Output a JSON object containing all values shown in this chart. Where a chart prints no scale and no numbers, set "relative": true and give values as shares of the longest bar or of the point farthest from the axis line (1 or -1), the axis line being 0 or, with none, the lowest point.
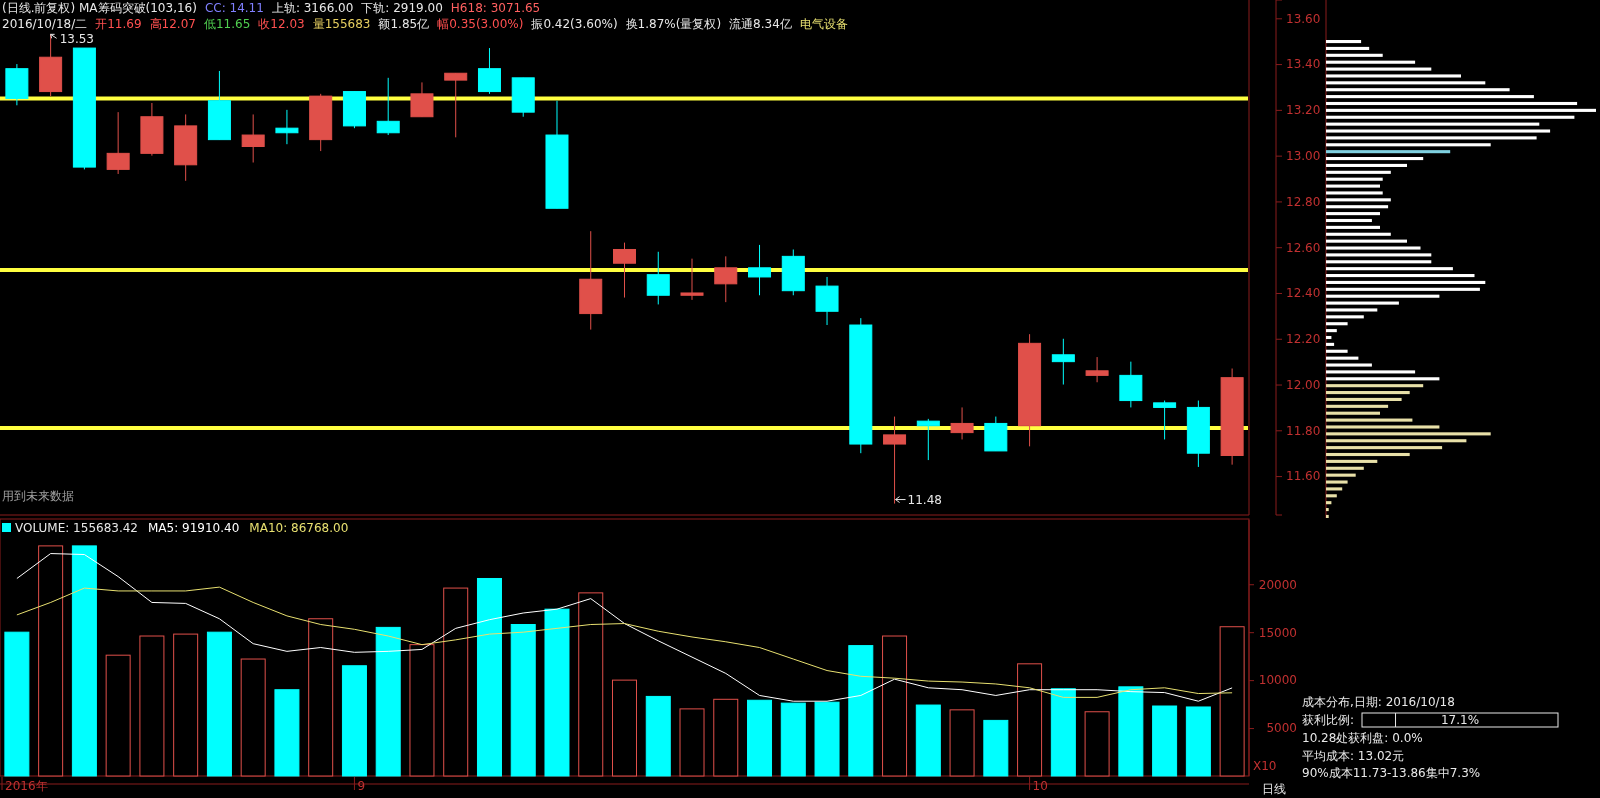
{
  "chart_data": [
    {
      "type": "candlestick",
      "title": "(日线.前复权) MA筹码突破(103,16)",
      "categories": [
        null,
        null,
        null,
        null,
        null,
        null,
        null,
        null,
        null,
        null,
        null,
        null,
        null,
        null,
        null,
        null,
        null,
        null,
        null,
        null,
        null,
        null,
        null,
        null,
        null,
        null,
        null,
        null,
        null,
        null,
        null,
        null,
        null,
        null,
        null,
        null,
        null
      ],
      "ohlc": [
        [
          13.38,
          13.4,
          13.22,
          13.25
        ],
        [
          13.28,
          13.53,
          13.26,
          13.43
        ],
        [
          13.47,
          13.47,
          12.94,
          12.95
        ],
        [
          12.94,
          13.19,
          12.92,
          13.01
        ],
        [
          13.01,
          13.23,
          13.0,
          13.17
        ],
        [
          12.96,
          13.18,
          12.89,
          13.13
        ],
        [
          13.24,
          13.37,
          13.07,
          13.07
        ],
        [
          13.04,
          13.18,
          12.97,
          13.09
        ],
        [
          13.12,
          13.2,
          13.05,
          13.1
        ],
        [
          13.07,
          13.27,
          13.02,
          13.26
        ],
        [
          13.28,
          13.28,
          13.12,
          13.13
        ],
        [
          13.15,
          13.34,
          13.09,
          13.1
        ],
        [
          13.17,
          13.32,
          13.17,
          13.27
        ],
        [
          13.33,
          13.36,
          13.08,
          13.36
        ],
        [
          13.38,
          13.47,
          13.27,
          13.28
        ],
        [
          13.34,
          13.34,
          13.17,
          13.19
        ],
        [
          13.09,
          13.24,
          12.77,
          12.77
        ],
        [
          12.31,
          12.67,
          12.24,
          12.46
        ],
        [
          12.53,
          12.62,
          12.38,
          12.59
        ],
        [
          12.48,
          12.58,
          12.35,
          12.39
        ],
        [
          12.39,
          12.55,
          12.37,
          12.4
        ],
        [
          12.44,
          12.56,
          12.36,
          12.51
        ],
        [
          12.51,
          12.61,
          12.39,
          12.47
        ],
        [
          12.56,
          12.59,
          12.39,
          12.41
        ],
        [
          12.43,
          12.47,
          12.26,
          12.32
        ],
        [
          12.26,
          12.29,
          11.7,
          11.74
        ],
        [
          11.74,
          11.86,
          11.48,
          11.78
        ],
        [
          11.84,
          11.85,
          11.67,
          11.82
        ],
        [
          11.79,
          11.9,
          11.76,
          11.83
        ],
        [
          11.83,
          11.86,
          11.71,
          11.71
        ],
        [
          11.82,
          12.22,
          11.73,
          12.18
        ],
        [
          12.13,
          12.2,
          12.0,
          12.1
        ],
        [
          12.04,
          12.12,
          12.01,
          12.06
        ],
        [
          12.04,
          12.1,
          11.9,
          11.93
        ],
        [
          11.92,
          11.93,
          11.76,
          11.9
        ],
        [
          11.9,
          11.93,
          11.64,
          11.7
        ],
        [
          11.69,
          12.07,
          11.65,
          12.03
        ]
      ],
      "colors": [
        "#00ffff",
        "#e0504a",
        "#00ffff",
        "#e0504a",
        "#e0504a",
        "#e0504a",
        "#00ffff",
        "#e0504a",
        "#00ffff",
        "#e0504a",
        "#00ffff",
        "#00ffff",
        "#e0504a",
        "#e0504a",
        "#00ffff",
        "#00ffff",
        "#00ffff",
        "#e0504a",
        "#e0504a",
        "#00ffff",
        "#e0504a",
        "#e0504a",
        "#00ffff",
        "#00ffff",
        "#00ffff",
        "#00ffff",
        "#e0504a",
        "#00ffff",
        "#e0504a",
        "#00ffff",
        "#e0504a",
        "#00ffff",
        "#e0504a",
        "#00ffff",
        "#00ffff",
        "#00ffff",
        "#e0504a"
      ],
      "ylim": [
        11.43,
        13.68
      ],
      "yticks": [
        {
          "value": 11.6,
          "label": "11.60"
        },
        {
          "value": 11.8,
          "label": "11.80"
        },
        {
          "value": 12.0,
          "label": "12.00"
        },
        {
          "value": 12.2,
          "label": "12.20"
        },
        {
          "value": 12.4,
          "label": "12.40"
        },
        {
          "value": 12.6,
          "label": "12.60"
        },
        {
          "value": 12.8,
          "label": "12.80"
        },
        {
          "value": 13.0,
          "label": "13.00"
        },
        {
          "value": 13.2,
          "label": "13.20"
        },
        {
          "value": 13.4,
          "label": "13.40"
        },
        {
          "value": 13.6,
          "label": "13.60"
        }
      ],
      "tick_labels": "y",
      "ref_lines": [
        {
          "axis": "y",
          "value": 13.25,
          "color": "#ffff40"
        },
        {
          "axis": "y",
          "value": 12.5,
          "color": "#ffff40"
        },
        {
          "axis": "y",
          "value": 11.81,
          "color": "#ffff40"
        }
      ],
      "annotations": [
        "CC: 14.11",
        "上轨: 3166.00",
        "下轨: 2919.00",
        "H618: 3071.65",
        "2016/10/18/二",
        "开11.69",
        "高12.07",
        "低11.65",
        "收12.03",
        "量155683",
        "额1.85亿",
        "幅0.35(3.00%)",
        "振0.42(3.60%)",
        "换1.87%(量复权)",
        "流通8.34亿",
        "电气设备",
        "用到未来数据",
        "13.53",
        "11.48"
      ]
    },
    {
      "type": "bar",
      "categories": [
        "2016年",
        null,
        null,
        null,
        null,
        null,
        null,
        null,
        null,
        null,
        "9",
        null,
        null,
        null,
        null,
        null,
        null,
        null,
        null,
        null,
        null,
        null,
        null,
        null,
        null,
        null,
        null,
        null,
        null,
        null,
        "10",
        null,
        null,
        null,
        null,
        null,
        null
      ],
      "series": [
        {
          "name": "VOLUME: 155683.42",
          "colors": [
            "#00ffff",
            "#e0504a",
            "#00ffff",
            "#e0504a",
            "#e0504a",
            "#e0504a",
            "#00ffff",
            "#e0504a",
            "#00ffff",
            "#e0504a",
            "#00ffff",
            "#00ffff",
            "#e0504a",
            "#e0504a",
            "#00ffff",
            "#00ffff",
            "#00ffff",
            "#e0504a",
            "#e0504a",
            "#00ffff",
            "#e0504a",
            "#e0504a",
            "#00ffff",
            "#00ffff",
            "#00ffff",
            "#00ffff",
            "#e0504a",
            "#00ffff",
            "#e0504a",
            "#00ffff",
            "#e0504a",
            "#00ffff",
            "#e0504a",
            "#00ffff",
            "#00ffff",
            "#00ffff",
            "#e0504a"
          ],
          "values": [
            15000,
            24000,
            24000,
            12600,
            14600,
            14800,
            15000,
            12200,
            9000,
            16400,
            11500,
            15500,
            13700,
            19600,
            20600,
            15800,
            17400,
            19100,
            10000,
            8300,
            7000,
            8000,
            7900,
            7600,
            7700,
            13600,
            14600,
            7400,
            6900,
            5800,
            11700,
            9100,
            6700,
            9300,
            7300,
            7200,
            15568
          ]
        },
        {
          "name": "MA5: 91910.40",
          "type": "line",
          "color": "#ffffff",
          "values": [
            20600,
            23200,
            23100,
            20800,
            18100,
            18000,
            16400,
            13800,
            13000,
            13400,
            12900,
            13000,
            13200,
            15400,
            16300,
            17000,
            17400,
            18500,
            15900,
            14100,
            12400,
            10700,
            8400,
            7800,
            7800,
            8400,
            10100,
            9200,
            9000,
            8400,
            9000,
            9000,
            9000,
            8800,
            8700,
            7800,
            9191
          ]
        },
        {
          "name": "MA10: 86768.00",
          "type": "line",
          "color": "#e8e070",
          "values": [
            16800,
            18100,
            19600,
            19300,
            19300,
            19300,
            19700,
            18100,
            16700,
            15800,
            15300,
            14600,
            13700,
            14200,
            14800,
            15000,
            15400,
            15800,
            15900,
            15100,
            14500,
            14000,
            13400,
            12200,
            11000,
            10400,
            10200,
            9900,
            9800,
            9600,
            9200,
            8200,
            8200,
            9000,
            9200,
            8600,
            8677
          ]
        }
      ],
      "ylim": [
        0,
        26700
      ],
      "yticks": [
        5000,
        10000,
        15000,
        20000
      ],
      "legend": "top left",
      "annotations": [
        "X10",
        "日线"
      ]
    },
    {
      "type": "bar",
      "orientation": "horizontal",
      "relative": true,
      "tick_labels": false,
      "categories": [
        null,
        null,
        null,
        null,
        null,
        null,
        null,
        null,
        null,
        null,
        null,
        null,
        null,
        null,
        null,
        null,
        null,
        null,
        null,
        null,
        null,
        null,
        null,
        null,
        null,
        null,
        null,
        null,
        null,
        null,
        null,
        null,
        null,
        null,
        null,
        null,
        null,
        null,
        null,
        null,
        null,
        null,
        null,
        null,
        null,
        null,
        null,
        null,
        null,
        null,
        null,
        null,
        null,
        null,
        null,
        null,
        null,
        null,
        null,
        null,
        null,
        null,
        null,
        null,
        null,
        null,
        null,
        null,
        null,
        null
      ],
      "values": [
        0.13,
        0.16,
        0.21,
        0.33,
        0.39,
        0.5,
        0.59,
        0.68,
        0.77,
        0.93,
        1,
        0.92,
        0.79,
        0.83,
        0.78,
        0.61,
        0.46,
        0.36,
        0.3,
        0.24,
        0.21,
        0.2,
        0.21,
        0.24,
        0.23,
        0.2,
        0.17,
        0.2,
        0.24,
        0.3,
        0.35,
        0.39,
        0.39,
        0.47,
        0.55,
        0.59,
        0.57,
        0.42,
        0.27,
        0.19,
        0.14,
        0.08,
        0.04,
        0.02,
        0.03,
        0.08,
        0.12,
        0.17,
        0.33,
        0.42,
        0.36,
        0.31,
        0.28,
        0.23,
        0.2,
        0.32,
        0.42,
        0.61,
        0.52,
        0.43,
        0.31,
        0.19,
        0.14,
        0.11,
        0.08,
        0.06,
        0.04,
        0.02,
        0.01,
        0.01
      ],
      "colors": [
        "#ffffff",
        "#ffffff",
        "#ffffff",
        "#ffffff",
        "#ffffff",
        "#ffffff",
        "#ffffff",
        "#ffffff",
        "#ffffff",
        "#ffffff",
        "#ffffff",
        "#ffffff",
        "#ffffff",
        "#ffffff",
        "#ffffff",
        "#ffffff",
        "#7fd0e0",
        "#ffffff",
        "#ffffff",
        "#ffffff",
        "#ffffff",
        "#ffffff",
        "#ffffff",
        "#ffffff",
        "#ffffff",
        "#ffffff",
        "#ffffff",
        "#ffffff",
        "#ffffff",
        "#ffffff",
        "#ffffff",
        "#ffffff",
        "#ffffff",
        "#ffffff",
        "#ffffff",
        "#ffffff",
        "#ffffff",
        "#ffffff",
        "#ffffff",
        "#ffffff",
        "#ffffff",
        "#ffffff",
        "#ffffff",
        "#ffffff",
        "#ffffff",
        "#ffffff",
        "#ffffff",
        "#ffffff",
        "#ffffff",
        "#ffffff",
        "#e8e0a8",
        "#e8e0a8",
        "#e8e0a8",
        "#e8e0a8",
        "#e8e0a8",
        "#e8e0a8",
        "#e8e0a8",
        "#e8e0a8",
        "#e8e0a8",
        "#e8e0a8",
        "#e8e0a8",
        "#e8e0a8",
        "#e8e0a8",
        "#e8e0a8",
        "#e8e0a8",
        "#e8e0a8",
        "#e8e0a8",
        "#e8e0a8",
        "#e8e0a8",
        "#e8e0a8"
      ],
      "annotations": [
        "成本分布,日期: 2016/10/18",
        "获利比例:",
        "17.1%",
        "10.28处获利盘: 0.0%",
        "平均成本: 13.02元",
        "90%成本11.73-13.86集中7.3%"
      ]
    }
  ]
}
